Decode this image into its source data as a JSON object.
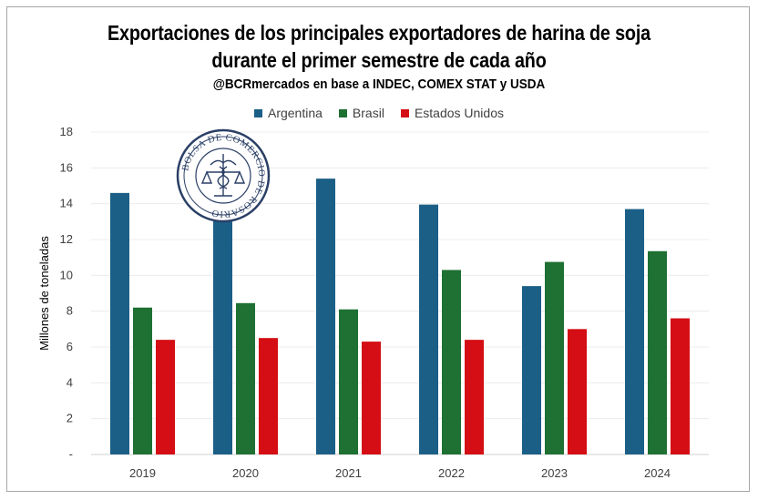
{
  "chart_data": {
    "type": "bar",
    "title": "Exportaciones de los principales exportadores de harina de soja",
    "title_line2": "durante el primer semestre de cada año",
    "subtitle": "@BCRmercados en base a INDEC, COMEX STAT y USDA",
    "ylabel": "Millones de toneladas",
    "xlabel": "",
    "categories": [
      "2019",
      "2020",
      "2021",
      "2022",
      "2023",
      "2024"
    ],
    "series": [
      {
        "name": "Argentina",
        "color": "#1b5f87",
        "values": [
          14.6,
          13.1,
          15.4,
          13.95,
          9.4,
          13.7
        ]
      },
      {
        "name": "Brasil",
        "color": "#1e7033",
        "values": [
          8.2,
          8.45,
          8.1,
          10.3,
          10.75,
          11.35
        ]
      },
      {
        "name": "Estados Unidos",
        "color": "#d40e14",
        "values": [
          6.4,
          6.5,
          6.3,
          6.4,
          7.0,
          7.6
        ]
      }
    ],
    "ylim": [
      0,
      18
    ],
    "yticks": [
      0,
      2,
      4,
      6,
      8,
      10,
      12,
      14,
      16,
      18
    ],
    "ytick_labels": [
      "-",
      "2",
      "4",
      "6",
      "8",
      "10",
      "12",
      "14",
      "16",
      "18"
    ],
    "grid": true,
    "legend": "top-center"
  },
  "logo": {
    "text": "BOLSA DE COMERCIO DE ROSARIO",
    "icon": "caduceus-scales-seal-icon"
  }
}
